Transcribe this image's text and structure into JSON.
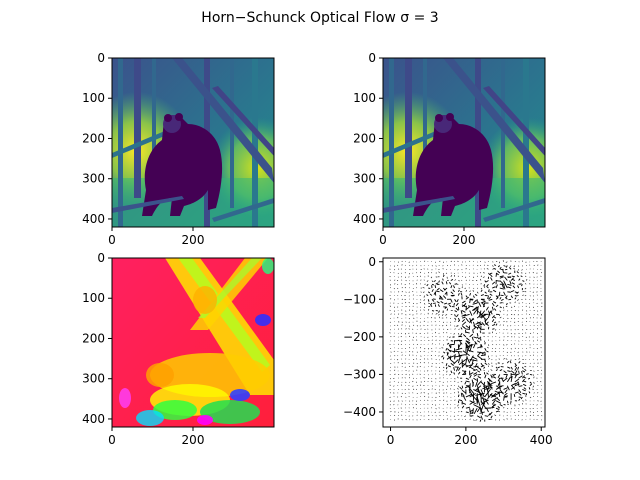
{
  "figure": {
    "title": "Horn−Schunck Optical Flow σ = 3"
  },
  "chart_data": [
    {
      "type": "heatmap",
      "panel": "frame-1",
      "content": "grayscale photo of a bear in a forest, viridis colormap",
      "colormap": "viridis",
      "xlim": [
        0,
        400
      ],
      "ylim": [
        420,
        0
      ],
      "x_ticks": [
        0,
        200
      ],
      "y_ticks": [
        0,
        100,
        200,
        300,
        400
      ]
    },
    {
      "type": "heatmap",
      "panel": "frame-2",
      "content": "grayscale photo of a bear in a forest, viridis colormap",
      "colormap": "viridis",
      "xlim": [
        0,
        400
      ],
      "ylim": [
        420,
        0
      ],
      "x_ticks": [
        0,
        200
      ],
      "y_ticks": [
        0,
        100,
        200,
        300,
        400
      ]
    },
    {
      "type": "heatmap",
      "panel": "flow-direction",
      "content": "flow direction hue map (hsv colormap)",
      "colormap": "hsv",
      "xlim": [
        0,
        400
      ],
      "ylim": [
        420,
        0
      ],
      "x_ticks": [
        0,
        200
      ],
      "y_ticks": [
        0,
        100,
        200,
        300,
        400
      ]
    },
    {
      "type": "scatter",
      "panel": "flow-quiver",
      "content": "quiver plot of optical flow vectors",
      "xlim": [
        -20,
        410
      ],
      "ylim": [
        -440,
        10
      ],
      "x_ticks": [
        0,
        200,
        400
      ],
      "y_ticks": [
        0,
        -100,
        -200,
        -300,
        -400
      ],
      "grid": false
    }
  ],
  "colors": {
    "arrow": "#000000",
    "viridis_dark": "#440154",
    "viridis_mid": "#21918c",
    "viridis_light": "#fde725",
    "hsv_red": "#ff1f4b",
    "hsv_yellow": "#ffff00",
    "hsv_green": "#00ff00"
  }
}
